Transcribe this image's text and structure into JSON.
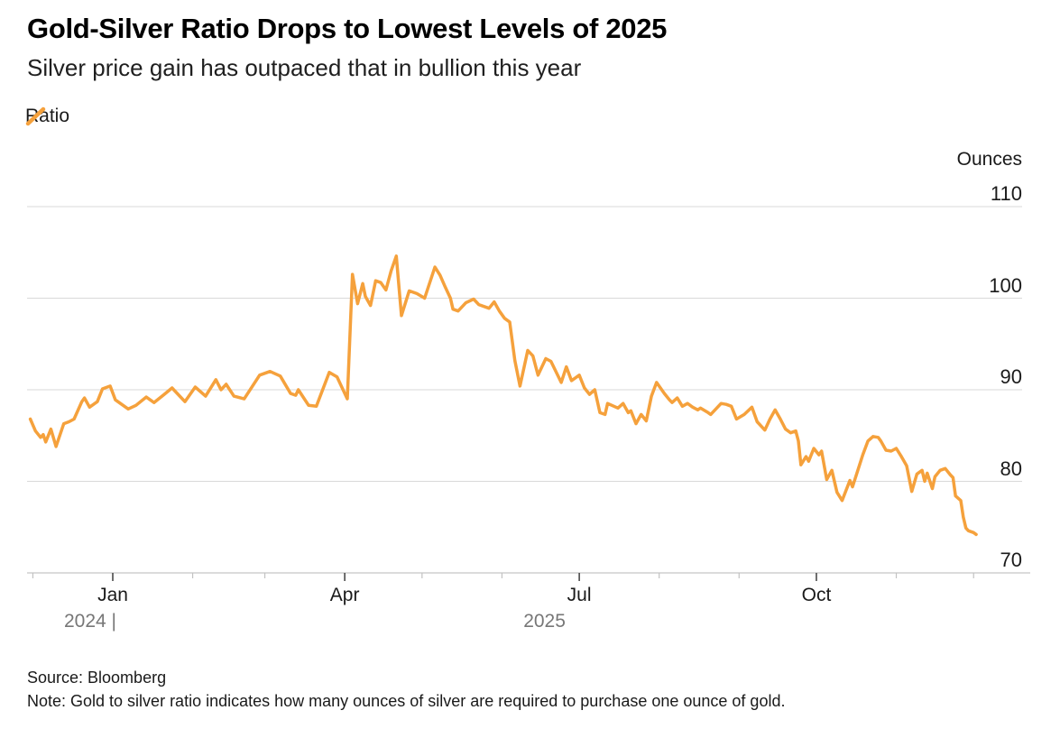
{
  "header": {
    "title": "Gold-Silver Ratio Drops to Lowest Levels of 2025",
    "subtitle": "Silver price gain has outpaced that in bullion this year"
  },
  "legend": {
    "series_label": "Ratio"
  },
  "footer": {
    "source": "Source: Bloomberg",
    "note": "Note: Gold to silver ratio indicates how many ounces of silver are required to purchase one ounce of gold."
  },
  "colors": {
    "series_orange": "#F5A13C",
    "text_dark": "#1a1a1a",
    "text_gray": "#777777",
    "gridline": "#d9d9d9",
    "axis_line": "#cfcfcf",
    "major_tick": "#4a4a4a",
    "minor_tick": "#c2c2c2"
  },
  "chart_data": {
    "type": "line",
    "title": "Gold-Silver Ratio Drops to Lowest Levels of 2025",
    "subtitle": "Silver price gain has outpaced that in bullion this year",
    "unit_label": "Ounces",
    "grid": "horizontal",
    "legend_position": "top-left",
    "y_axis": {
      "side": "right",
      "label": "Ounces",
      "ticks": [
        110,
        100,
        90,
        80,
        70
      ],
      "range": [
        70,
        110
      ]
    },
    "x_axis": {
      "range": [
        "2024-11-30",
        "2025-12-02"
      ],
      "major_tick_months": [
        "2025-01",
        "2025-04",
        "2025-07",
        "2025-10"
      ],
      "major_tick_labels": [
        "Jan",
        "Apr",
        "Jul",
        "Oct"
      ],
      "minor_ticks": "monthly",
      "year_labels": [
        {
          "text": "2024 |",
          "anchor": "year-boundary-jan"
        },
        {
          "text": "2025",
          "anchor": "center-of-2025"
        }
      ]
    },
    "series": [
      {
        "name": "Ratio",
        "color": "#F5A13C",
        "points": [
          [
            "2024-11-30",
            86.8
          ],
          [
            "2024-12-02",
            85.5
          ],
          [
            "2024-12-04",
            84.8
          ],
          [
            "2024-12-05",
            85.1
          ],
          [
            "2024-12-06",
            84.3
          ],
          [
            "2024-12-08",
            85.7
          ],
          [
            "2024-12-10",
            83.8
          ],
          [
            "2024-12-13",
            86.3
          ],
          [
            "2024-12-15",
            86.5
          ],
          [
            "2024-12-17",
            86.8
          ],
          [
            "2024-12-20",
            88.7
          ],
          [
            "2024-12-21",
            89.1
          ],
          [
            "2024-12-23",
            88.1
          ],
          [
            "2024-12-26",
            88.7
          ],
          [
            "2024-12-28",
            90.1
          ],
          [
            "2024-12-31",
            90.4
          ],
          [
            "2025-01-02",
            88.9
          ],
          [
            "2025-01-07",
            87.9
          ],
          [
            "2025-01-10",
            88.3
          ],
          [
            "2025-01-14",
            89.2
          ],
          [
            "2025-01-17",
            88.6
          ],
          [
            "2025-01-21",
            89.5
          ],
          [
            "2025-01-24",
            90.2
          ],
          [
            "2025-01-29",
            88.7
          ],
          [
            "2025-02-02",
            90.3
          ],
          [
            "2025-02-06",
            89.3
          ],
          [
            "2025-02-10",
            91.1
          ],
          [
            "2025-02-12",
            90.0
          ],
          [
            "2025-02-14",
            90.6
          ],
          [
            "2025-02-17",
            89.3
          ],
          [
            "2025-02-21",
            89.0
          ],
          [
            "2025-02-27",
            91.6
          ],
          [
            "2025-03-03",
            92.0
          ],
          [
            "2025-03-07",
            91.5
          ],
          [
            "2025-03-11",
            89.6
          ],
          [
            "2025-03-13",
            89.4
          ],
          [
            "2025-03-14",
            90.0
          ],
          [
            "2025-03-18",
            88.3
          ],
          [
            "2025-03-21",
            88.2
          ],
          [
            "2025-03-26",
            91.9
          ],
          [
            "2025-03-29",
            91.4
          ],
          [
            "2025-04-02",
            89.0
          ],
          [
            "2025-04-04",
            102.6
          ],
          [
            "2025-04-06",
            99.4
          ],
          [
            "2025-04-08",
            101.6
          ],
          [
            "2025-04-09",
            100.2
          ],
          [
            "2025-04-11",
            99.2
          ],
          [
            "2025-04-13",
            101.9
          ],
          [
            "2025-04-15",
            101.7
          ],
          [
            "2025-04-17",
            100.9
          ],
          [
            "2025-04-19",
            103.0
          ],
          [
            "2025-04-21",
            104.6
          ],
          [
            "2025-04-23",
            98.1
          ],
          [
            "2025-04-26",
            100.8
          ],
          [
            "2025-04-29",
            100.5
          ],
          [
            "2025-05-02",
            100.0
          ],
          [
            "2025-05-06",
            103.4
          ],
          [
            "2025-05-08",
            102.5
          ],
          [
            "2025-05-10",
            101.2
          ],
          [
            "2025-05-12",
            100.0
          ],
          [
            "2025-05-13",
            98.8
          ],
          [
            "2025-05-15",
            98.6
          ],
          [
            "2025-05-18",
            99.5
          ],
          [
            "2025-05-21",
            99.9
          ],
          [
            "2025-05-23",
            99.3
          ],
          [
            "2025-05-27",
            98.9
          ],
          [
            "2025-05-29",
            99.6
          ],
          [
            "2025-05-31",
            98.6
          ],
          [
            "2025-06-02",
            97.8
          ],
          [
            "2025-06-04",
            97.4
          ],
          [
            "2025-06-06",
            93.2
          ],
          [
            "2025-06-08",
            90.4
          ],
          [
            "2025-06-11",
            94.3
          ],
          [
            "2025-06-13",
            93.7
          ],
          [
            "2025-06-15",
            91.6
          ],
          [
            "2025-06-18",
            93.4
          ],
          [
            "2025-06-20",
            93.1
          ],
          [
            "2025-06-24",
            90.8
          ],
          [
            "2025-06-26",
            92.5
          ],
          [
            "2025-06-28",
            91.0
          ],
          [
            "2025-07-01",
            91.6
          ],
          [
            "2025-07-03",
            90.2
          ],
          [
            "2025-07-05",
            89.5
          ],
          [
            "2025-07-07",
            90.0
          ],
          [
            "2025-07-09",
            87.5
          ],
          [
            "2025-07-11",
            87.3
          ],
          [
            "2025-07-12",
            88.5
          ],
          [
            "2025-07-16",
            88.0
          ],
          [
            "2025-07-18",
            88.5
          ],
          [
            "2025-07-20",
            87.5
          ],
          [
            "2025-07-21",
            87.7
          ],
          [
            "2025-07-23",
            86.3
          ],
          [
            "2025-07-25",
            87.3
          ],
          [
            "2025-07-27",
            86.6
          ],
          [
            "2025-07-29",
            89.3
          ],
          [
            "2025-07-31",
            90.8
          ],
          [
            "2025-08-03",
            89.6
          ],
          [
            "2025-08-05",
            88.9
          ],
          [
            "2025-08-06",
            88.6
          ],
          [
            "2025-08-08",
            89.1
          ],
          [
            "2025-08-10",
            88.2
          ],
          [
            "2025-08-12",
            88.5
          ],
          [
            "2025-08-14",
            88.1
          ],
          [
            "2025-08-16",
            87.8
          ],
          [
            "2025-08-17",
            88.0
          ],
          [
            "2025-08-20",
            87.5
          ],
          [
            "2025-08-21",
            87.3
          ],
          [
            "2025-08-25",
            88.5
          ],
          [
            "2025-08-27",
            88.4
          ],
          [
            "2025-08-29",
            88.2
          ],
          [
            "2025-08-31",
            86.8
          ],
          [
            "2025-09-03",
            87.3
          ],
          [
            "2025-09-06",
            88.1
          ],
          [
            "2025-09-08",
            86.5
          ],
          [
            "2025-09-11",
            85.6
          ],
          [
            "2025-09-13",
            86.8
          ],
          [
            "2025-09-15",
            87.8
          ],
          [
            "2025-09-17",
            86.8
          ],
          [
            "2025-09-19",
            85.7
          ],
          [
            "2025-09-21",
            85.3
          ],
          [
            "2025-09-23",
            85.5
          ],
          [
            "2025-09-24",
            84.4
          ],
          [
            "2025-09-25",
            81.8
          ],
          [
            "2025-09-27",
            82.7
          ],
          [
            "2025-09-28",
            82.2
          ],
          [
            "2025-09-30",
            83.6
          ],
          [
            "2025-10-02",
            82.9
          ],
          [
            "2025-10-03",
            83.3
          ],
          [
            "2025-10-05",
            80.2
          ],
          [
            "2025-10-07",
            81.2
          ],
          [
            "2025-10-09",
            78.8
          ],
          [
            "2025-10-11",
            77.9
          ],
          [
            "2025-10-14",
            80.1
          ],
          [
            "2025-10-15",
            79.4
          ],
          [
            "2025-10-19",
            82.9
          ],
          [
            "2025-10-21",
            84.4
          ],
          [
            "2025-10-23",
            84.9
          ],
          [
            "2025-10-25",
            84.8
          ],
          [
            "2025-10-26",
            84.4
          ],
          [
            "2025-10-28",
            83.4
          ],
          [
            "2025-10-30",
            83.3
          ],
          [
            "2025-11-01",
            83.6
          ],
          [
            "2025-11-03",
            82.7
          ],
          [
            "2025-11-05",
            81.7
          ],
          [
            "2025-11-07",
            78.9
          ],
          [
            "2025-11-09",
            80.8
          ],
          [
            "2025-11-11",
            81.2
          ],
          [
            "2025-11-12",
            80.0
          ],
          [
            "2025-11-13",
            80.9
          ],
          [
            "2025-11-15",
            79.2
          ],
          [
            "2025-11-16",
            80.5
          ],
          [
            "2025-11-18",
            81.2
          ],
          [
            "2025-11-20",
            81.4
          ],
          [
            "2025-11-22",
            80.7
          ],
          [
            "2025-11-23",
            80.4
          ],
          [
            "2025-11-24",
            78.4
          ],
          [
            "2025-11-26",
            77.9
          ],
          [
            "2025-11-27",
            76.1
          ],
          [
            "2025-11-28",
            74.9
          ],
          [
            "2025-11-29",
            74.6
          ],
          [
            "2025-12-01",
            74.4
          ],
          [
            "2025-12-02",
            74.2
          ]
        ]
      }
    ]
  }
}
